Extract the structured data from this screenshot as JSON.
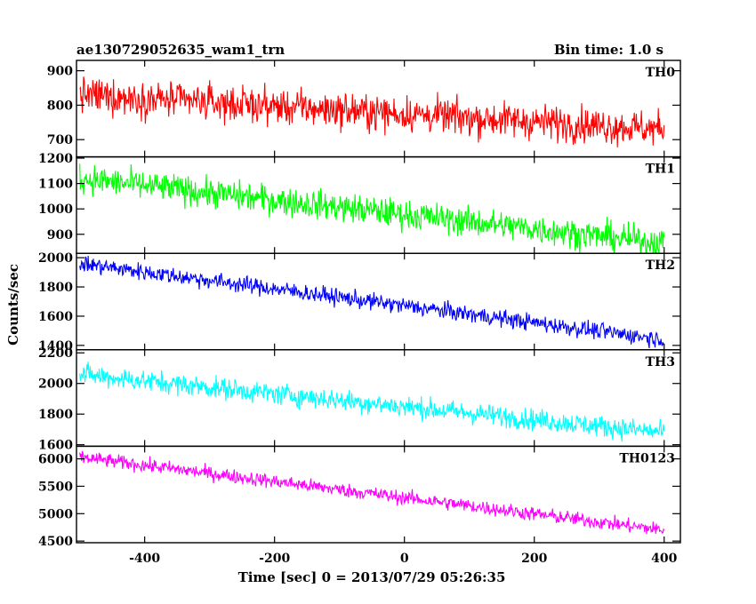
{
  "header": {
    "left_title": "ae130729052635_wam1_trn",
    "right_title": "Bin time: 1.0 s"
  },
  "chart_data": {
    "type": "line",
    "title": "ae130729052635_wam1_trn",
    "subtitle": "Bin time: 1.0 s",
    "xlabel": "Time [sec] 0 = 2013/07/29 05:26:35",
    "ylabel": "Counts/sec",
    "xlim": [
      -505,
      425
    ],
    "x_ticks": [
      -400,
      -200,
      0,
      200,
      400
    ],
    "grid": false,
    "legend": "none",
    "panels": [
      {
        "name": "TH0",
        "color": "#ff0000",
        "ylim": [
          650,
          930
        ],
        "y_ticks": [
          700,
          800,
          900
        ],
        "x": [
          -500,
          400
        ],
        "trend": [
          830,
          730
        ],
        "noise_amplitude": 40
      },
      {
        "name": "TH1",
        "color": "#00ff00",
        "ylim": [
          825,
          1205
        ],
        "y_ticks": [
          900,
          1000,
          1100,
          1200
        ],
        "x": [
          -500,
          400
        ],
        "trend": [
          1120,
          865
        ],
        "noise_amplitude": 45
      },
      {
        "name": "TH2",
        "color": "#0000ff",
        "ylim": [
          1370,
          2030
        ],
        "y_ticks": [
          1400,
          1600,
          1800,
          2000
        ],
        "x": [
          -500,
          400
        ],
        "trend": [
          1960,
          1440
        ],
        "noise_amplitude": 45
      },
      {
        "name": "TH3",
        "color": "#00ffff",
        "ylim": [
          1590,
          2220
        ],
        "y_ticks": [
          1600,
          1800,
          2000,
          2200
        ],
        "x": [
          -500,
          400
        ],
        "trend": [
          2060,
          1680
        ],
        "noise_amplitude": 55
      },
      {
        "name": "TH0123",
        "color": "#ff00ff",
        "ylim": [
          4470,
          6230
        ],
        "y_ticks": [
          4500,
          5000,
          5500,
          6000
        ],
        "x": [
          -500,
          400
        ],
        "trend": [
          6030,
          4700
        ],
        "noise_amplitude": 100
      }
    ]
  }
}
